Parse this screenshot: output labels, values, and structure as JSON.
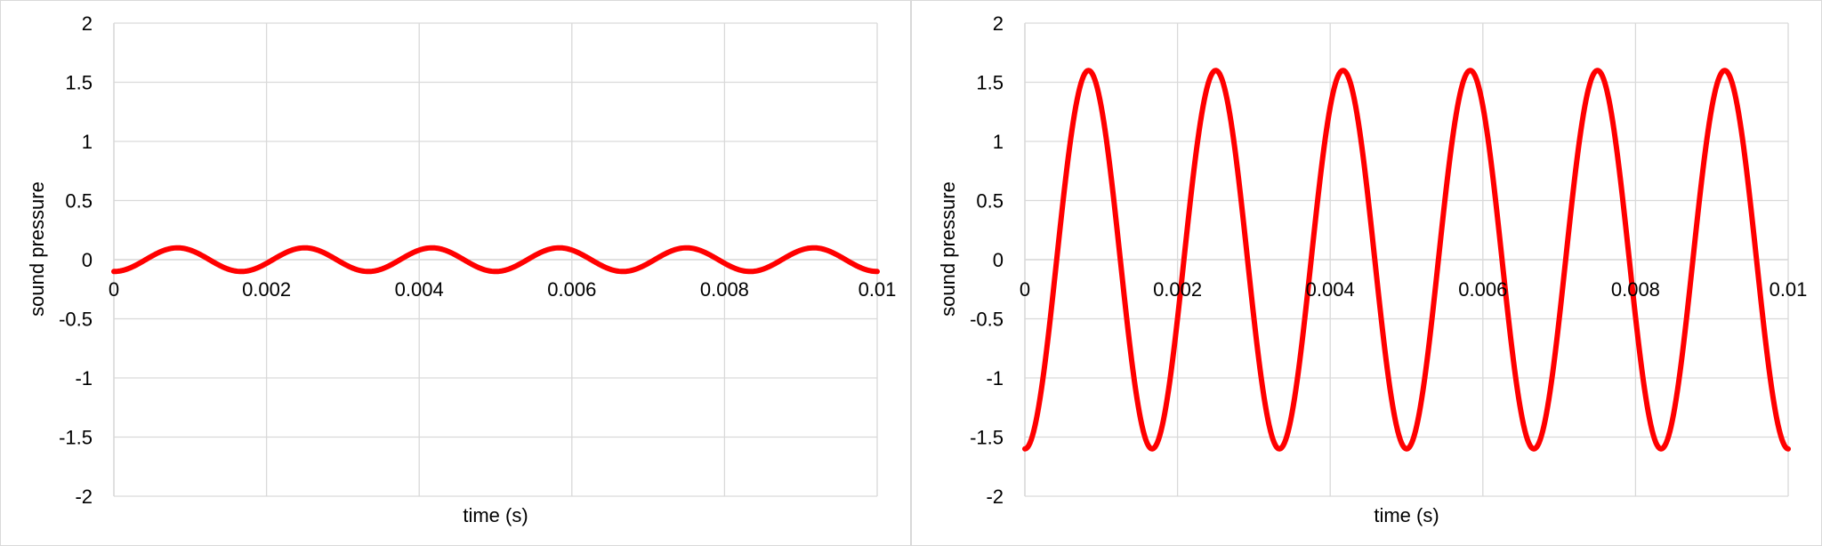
{
  "chart_data": [
    {
      "type": "line",
      "xlabel": "time (s)",
      "ylabel": "sound pressure",
      "xlim": [
        0,
        0.01
      ],
      "ylim": [
        -2,
        2
      ],
      "x_ticks": [
        "0",
        "0.002",
        "0.004",
        "0.006",
        "0.008",
        "0.01"
      ],
      "y_ticks": [
        "2",
        "1.5",
        "1",
        "0.5",
        "0",
        "-0.5",
        "-1",
        "-1.5",
        "-2"
      ],
      "grid": true,
      "series": [
        {
          "amplitude": 0.1,
          "period": 0.001667,
          "phase_at_zero": "minimum",
          "color": "#ff0000"
        }
      ]
    },
    {
      "type": "line",
      "xlabel": "time (s)",
      "ylabel": "sound pressure",
      "xlim": [
        0,
        0.01
      ],
      "ylim": [
        -2,
        2
      ],
      "x_ticks": [
        "0",
        "0.002",
        "0.004",
        "0.006",
        "0.008",
        "0.01"
      ],
      "y_ticks": [
        "2",
        "1.5",
        "1",
        "0.5",
        "0",
        "-0.5",
        "-1",
        "-1.5",
        "-2"
      ],
      "grid": true,
      "series": [
        {
          "amplitude": 1.6,
          "period": 0.001667,
          "phase_at_zero": "minimum",
          "color": "#ff0000"
        }
      ]
    }
  ]
}
